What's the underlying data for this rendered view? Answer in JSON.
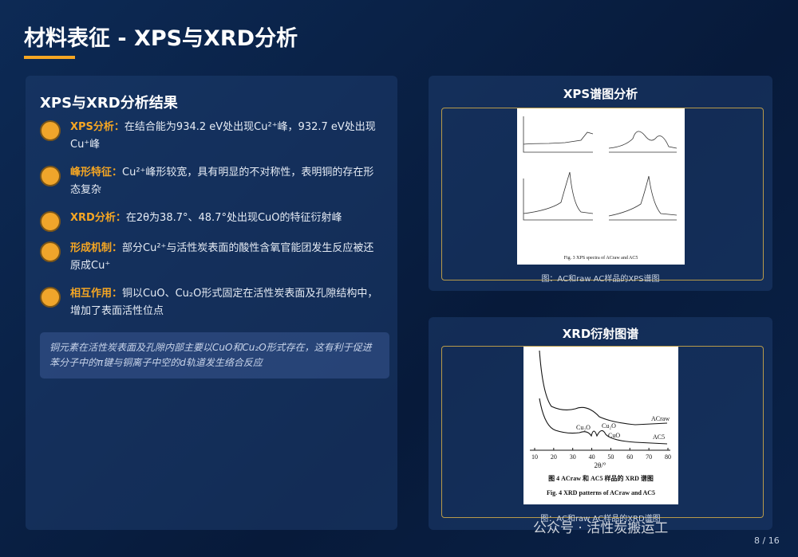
{
  "header": {
    "title": "材料表征 - XPS与XRD分析"
  },
  "left_panel": {
    "heading": "XPS与XRD分析结果",
    "items": [
      {
        "label": "XPS分析：",
        "text": "在结合能为934.2 eV处出现Cu²⁺峰，932.7 eV处出现Cu⁺峰"
      },
      {
        "label": "峰形特征：",
        "text": "Cu²⁺峰形较宽，具有明显的不对称性，表明铜的存在形态复杂"
      },
      {
        "label": "XRD分析：",
        "text": "在2θ为38.7°、48.7°处出现CuO的特征衍射峰"
      },
      {
        "label": "形成机制：",
        "text": "部分Cu²⁺与活性炭表面的酸性含氧官能团发生反应被还原成Cu⁺"
      },
      {
        "label": "相互作用：",
        "text": "铜以CuO、Cu₂O形式固定在活性炭表面及孔隙结构中，增加了表面活性位点"
      }
    ],
    "note": "铜元素在活性炭表面及孔隙内部主要以CuO和Cu₂O形式存在，这有利于促进苯分子中的π键与铜离子中空的d轨道发生络合反应"
  },
  "xps_panel": {
    "heading": "XPS谱图分析",
    "figure_caption_en": "Fig. 3   XPS spectra of ACraw and AC5",
    "caption": "图：AC和raw AC样品的XPS谱图"
  },
  "xrd_panel": {
    "heading": "XRD衍射图谱",
    "figure": {
      "xticks": [
        10,
        20,
        30,
        40,
        50,
        60,
        70,
        80
      ],
      "xlabel": "2θ/°",
      "series_labels": [
        "ACraw",
        "AC5"
      ],
      "peak_labels": [
        "Cu₂O",
        "Cu₂O",
        "CuO"
      ],
      "caption_cn": "图 4   ACraw 和 AC5 样品的 XRD 谱图",
      "caption_en": "Fig. 4   XRD patterns of ACraw and AC5"
    },
    "caption": "图：AC和raw AC样品的XRD谱图"
  },
  "footer": {
    "watermark": "公众号 · 活性炭搬运工",
    "page": "8 / 16"
  }
}
